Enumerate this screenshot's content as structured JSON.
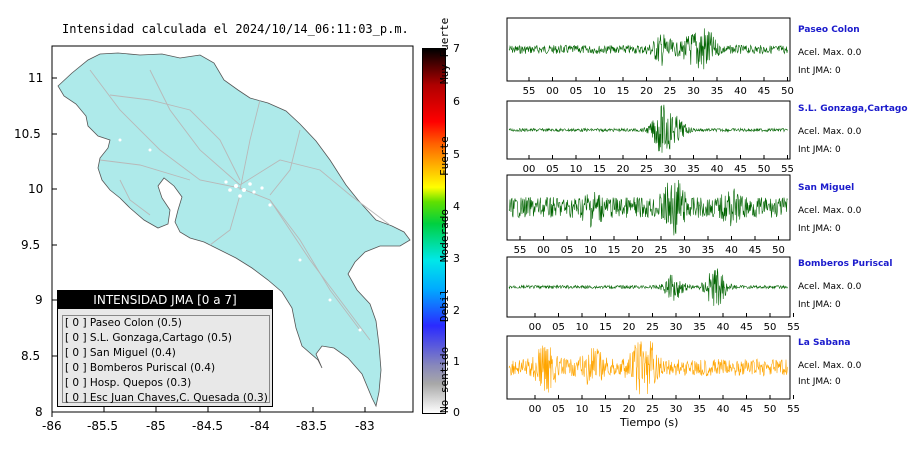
{
  "map": {
    "title": "Intensidad calculada el 2024/10/14_06:11:03_p.m.",
    "lat_ticks": [
      "11",
      "10.5",
      "10",
      "9.5",
      "9",
      "8.5",
      "8"
    ],
    "lon_ticks": [
      "-86",
      "-85.5",
      "-85",
      "-84.5",
      "-84",
      "-83.5",
      "-83"
    ],
    "colors": {
      "land": "#aeeaea",
      "roads": "#b8b8b8",
      "water": "#ffffff"
    }
  },
  "legend": {
    "header": "INTENSIDAD JMA [0 a 7]",
    "items": [
      "[ 0 ]  Paseo Colon (0.5)",
      "[ 0 ]  S.L. Gonzaga,Cartago (0.5)",
      "[ 0 ]  San Miguel (0.4)",
      "[ 0 ]  Bomberos Puriscal (0.4)",
      "[ 0 ]  Hosp. Quepos (0.3)",
      "[ 0 ]  Esc Juan Chaves,C. Quesada (0.3)"
    ]
  },
  "colorbar": {
    "ticks": [
      "7",
      "6",
      "5",
      "4",
      "3",
      "2",
      "1",
      "0"
    ],
    "labels": [
      "Muy Fuerte",
      "Fuerte",
      "Moderado",
      "Debil",
      "No sentido"
    ]
  },
  "seismograms": [
    {
      "name": "Paseo Colon",
      "acel": "Acel. Max. 0.0",
      "int": "Int JMA: 0",
      "ticks": [
        "55",
        "00",
        "05",
        "10",
        "15",
        "20",
        "25",
        "30",
        "35",
        "40",
        "45",
        "50"
      ],
      "color": "#006400"
    },
    {
      "name": "S.L. Gonzaga,Cartago",
      "acel": "Acel. Max. 0.0",
      "int": "Int JMA: 0",
      "ticks": [
        "00",
        "05",
        "10",
        "15",
        "20",
        "25",
        "30",
        "35",
        "40",
        "45",
        "50",
        "55"
      ],
      "color": "#006400"
    },
    {
      "name": "San Miguel",
      "acel": "Acel. Max. 0.0",
      "int": "Int JMA: 0",
      "ticks": [
        "55",
        "00",
        "05",
        "10",
        "15",
        "20",
        "25",
        "30",
        "35",
        "40",
        "45",
        "50"
      ],
      "color": "#006400"
    },
    {
      "name": "Bomberos Puriscal",
      "acel": "Acel. Max. 0.0",
      "int": "Int JMA: 0",
      "ticks": [
        "00",
        "05",
        "10",
        "15",
        "20",
        "25",
        "30",
        "35",
        "40",
        "45",
        "50",
        "55"
      ],
      "color": "#006400"
    },
    {
      "name": "La Sabana",
      "acel": "Acel. Max. 0.0",
      "int": "Int JMA: 0",
      "ticks": [
        "00",
        "05",
        "10",
        "15",
        "20",
        "25",
        "30",
        "35",
        "40",
        "45",
        "50",
        "55"
      ],
      "color": "#ffa500"
    }
  ],
  "xaxis_label": "Tiempo (s)"
}
